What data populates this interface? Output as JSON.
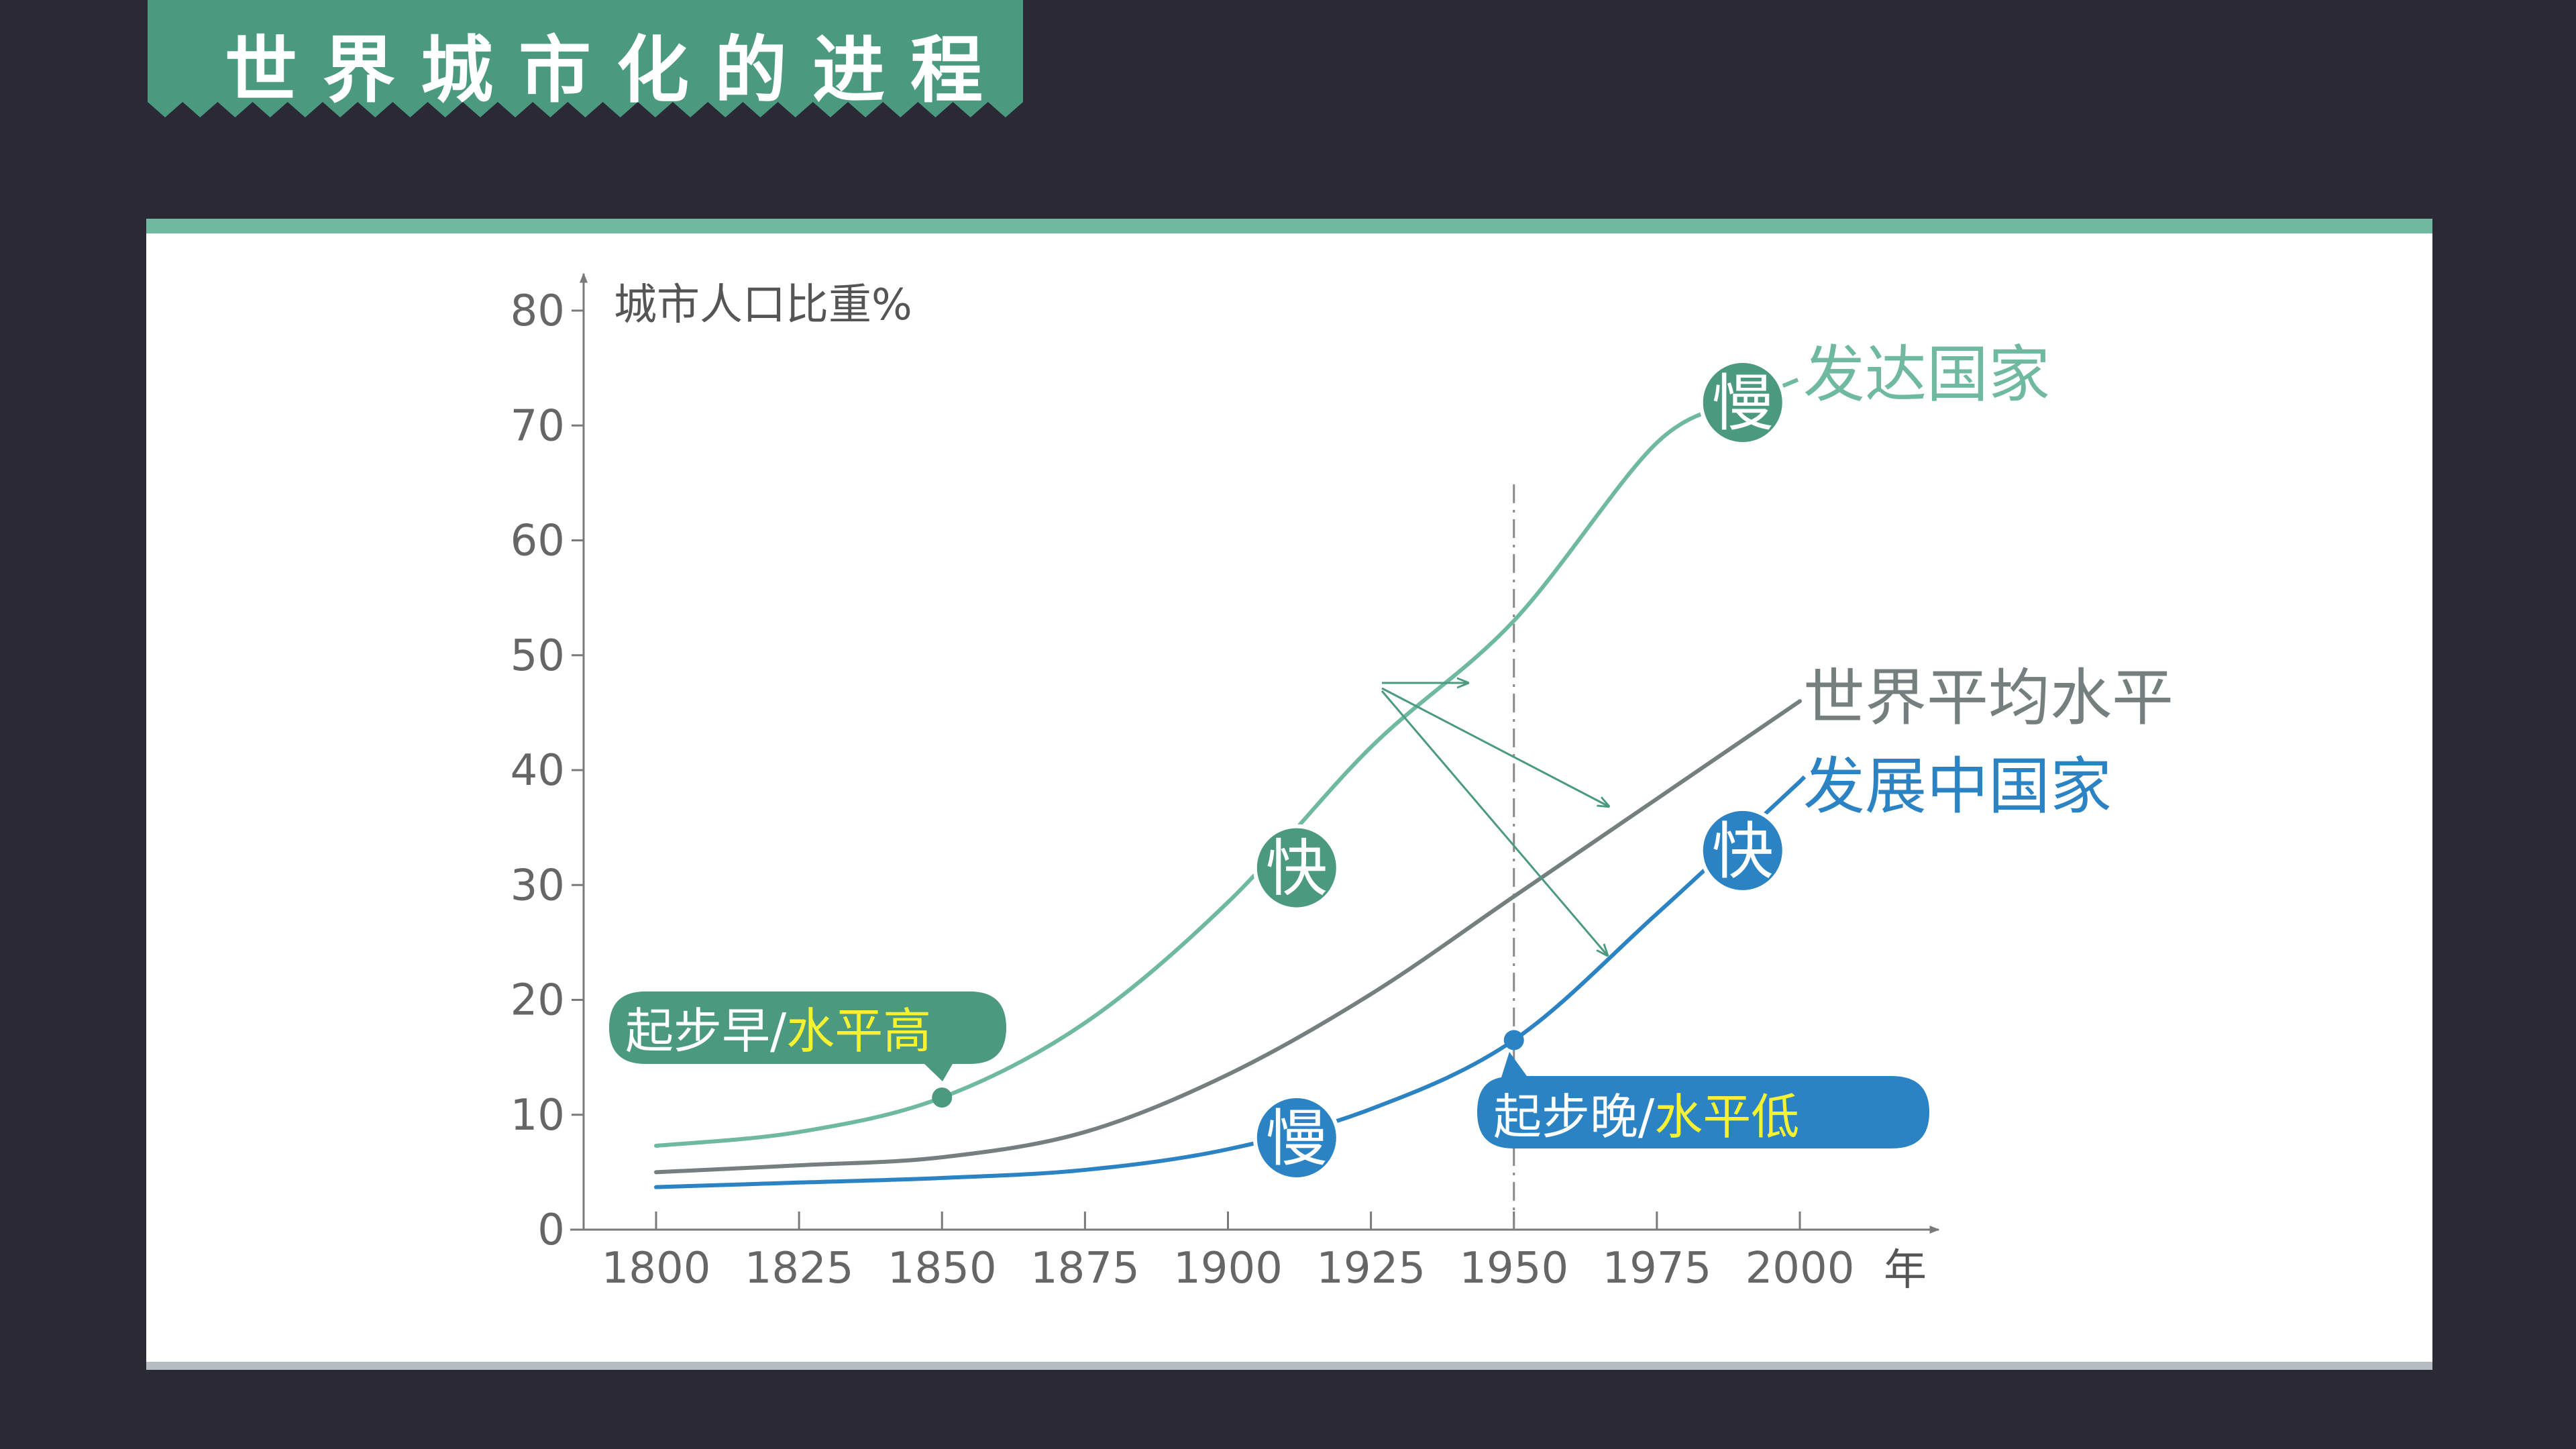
{
  "header": {
    "title": "世界城市化的进程"
  },
  "colors": {
    "background": "#2a2935",
    "banner": "#4b9a80",
    "panel_top_border": "#6fb9a0",
    "developed": "#6fb9a0",
    "world": "#757f80",
    "developing": "#2b83c4",
    "highlight_text": "#f4f233",
    "axis": "#7a7a7a"
  },
  "chart_data": {
    "type": "line",
    "title": "",
    "xlabel": "年",
    "ylabel": "城市人口比重%",
    "xlim": [
      1800,
      2010
    ],
    "ylim": [
      0,
      80
    ],
    "xticks": [
      1800,
      1825,
      1850,
      1875,
      1900,
      1925,
      1950,
      1975,
      2000
    ],
    "yticks": [
      0,
      10,
      20,
      30,
      40,
      50,
      60,
      70,
      80
    ],
    "series": [
      {
        "name": "发达国家",
        "color": "#6fb9a0",
        "x": [
          1800,
          1825,
          1850,
          1875,
          1900,
          1925,
          1950,
          1975,
          1990
        ],
        "y": [
          7.3,
          8.5,
          11.5,
          18.0,
          28.5,
          42.0,
          53.0,
          68.5,
          72.0
        ]
      },
      {
        "name": "世界平均水平",
        "color": "#757f80",
        "x": [
          1800,
          1825,
          1850,
          1875,
          1900,
          1925,
          1950,
          1975,
          2000
        ],
        "y": [
          5.0,
          5.6,
          6.3,
          8.5,
          13.5,
          20.5,
          29.0,
          37.5,
          46.0
        ]
      },
      {
        "name": "发展中国家",
        "color": "#2b83c4",
        "x": [
          1800,
          1825,
          1850,
          1875,
          1900,
          1925,
          1950,
          1975,
          2000
        ],
        "y": [
          3.7,
          4.1,
          4.5,
          5.2,
          7.0,
          10.5,
          16.5,
          27.5,
          39.0
        ]
      }
    ],
    "reference_line": {
      "x": 1950
    },
    "markers": [
      {
        "label": "慢",
        "series": "发达国家",
        "x": 1990,
        "y": 72.0
      },
      {
        "label": "快",
        "series": "发达国家",
        "x": 1912,
        "y": 31.5
      },
      {
        "label": "慢",
        "series": "发展中国家",
        "x": 1912,
        "y": 8.0
      },
      {
        "label": "快",
        "series": "发展中国家",
        "x": 1990,
        "y": 33.0
      }
    ],
    "points": [
      {
        "series": "发达国家",
        "x": 1850,
        "y": 11.5
      },
      {
        "series": "发展中国家",
        "x": 1950,
        "y": 16.5
      }
    ],
    "callouts": [
      {
        "part1": "起步早/",
        "part2": "水平高",
        "series": "发达国家"
      },
      {
        "part1": "起步晚/",
        "part2": "水平低",
        "series": "发展中国家"
      }
    ]
  }
}
